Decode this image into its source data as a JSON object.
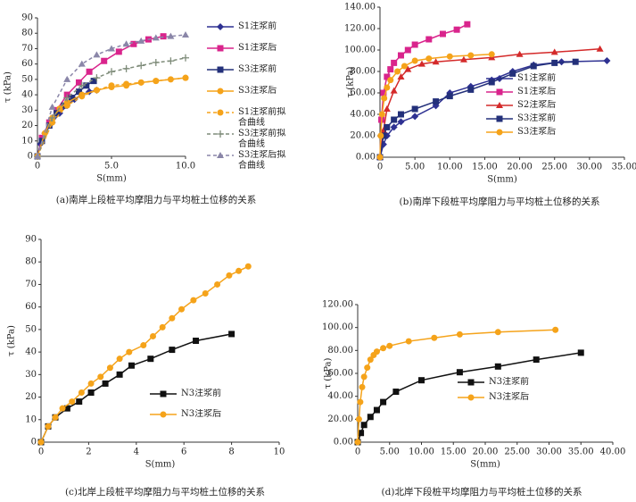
{
  "chart_data": [
    {
      "type": "line",
      "caption": "(a)南岸上段桩平均摩阻力与平均桩土位移的关系",
      "xlabel": "S(mm)",
      "ylabel": "τ (kPa)",
      "xlim": [
        0,
        10
      ],
      "xticks": [
        0,
        {
          "value": 5,
          "label": "5.0"
        },
        {
          "value": 10,
          "label": "10.0"
        }
      ],
      "ylim": [
        0,
        90
      ],
      "yticks": [
        0,
        10,
        20,
        30,
        40,
        50,
        60,
        70,
        80,
        90
      ],
      "series": [
        {
          "name": "S1注浆前",
          "color": "#2e3192",
          "marker": "diamond",
          "x": [
            0,
            0.2,
            0.5,
            1,
            1.5,
            2,
            2.5,
            3,
            3.5,
            4
          ],
          "values": [
            0,
            8,
            15,
            22,
            28,
            33,
            37,
            40,
            42,
            43
          ]
        },
        {
          "name": "S1注浆后",
          "color": "#d9248c",
          "marker": "square",
          "x": [
            0,
            0.3,
            0.8,
            1.3,
            2,
            2.8,
            3.5,
            4.5,
            5.5,
            6.5,
            7.5,
            8.5
          ],
          "values": [
            0,
            12,
            22,
            30,
            40,
            48,
            55,
            62,
            68,
            73,
            76,
            78
          ]
        },
        {
          "name": "S3注浆前",
          "color": "#23307a",
          "marker": "square",
          "x": [
            0,
            0.3,
            0.8,
            1.3,
            1.8,
            2.3,
            2.8,
            3.3,
            3.8
          ],
          "values": [
            0,
            10,
            20,
            28,
            33,
            38,
            42,
            46,
            49
          ]
        },
        {
          "name": "S3注浆后",
          "color": "#f5a31a",
          "marker": "circle",
          "x": [
            0,
            0.5,
            1,
            1.5,
            2,
            3,
            4,
            5,
            6,
            7,
            8,
            10
          ],
          "values": [
            0,
            15,
            25,
            31,
            35,
            40,
            43,
            45,
            46,
            48,
            49,
            51
          ]
        },
        {
          "name": "S1注浆前拟合曲线",
          "color": "#f5a31a",
          "marker": "circle",
          "dash": true,
          "x": [
            0,
            1,
            2,
            3,
            4,
            5,
            6,
            7,
            8,
            9,
            10
          ],
          "values": [
            0,
            22,
            33,
            39,
            43,
            46,
            47,
            48,
            49,
            50,
            51
          ]
        },
        {
          "name": "S3注浆前拟合曲线",
          "color": "#7f8c7a",
          "marker": "plus",
          "dash": true,
          "x": [
            0,
            1,
            2,
            3,
            4,
            5,
            6,
            7,
            8,
            9,
            10
          ],
          "values": [
            0,
            25,
            38,
            46,
            51,
            55,
            57,
            59,
            61,
            62,
            64
          ]
        },
        {
          "name": "S3注浆后拟合曲线",
          "color": "#8a86a8",
          "marker": "triangle",
          "dash": true,
          "x": [
            0,
            1,
            2,
            3,
            4,
            5,
            6,
            7,
            8,
            9,
            10
          ],
          "values": [
            0,
            32,
            50,
            60,
            66,
            70,
            73,
            75,
            77,
            78,
            79
          ]
        }
      ]
    },
    {
      "type": "line",
      "caption": "(b)南岸下段桩平均摩阻力与平均桩土位移的关系",
      "xlabel": "S(mm)",
      "ylabel": "τ (kPa)",
      "xlim": [
        0,
        35
      ],
      "xticks": [
        0,
        {
          "value": 5,
          "label": "5.00"
        },
        {
          "value": 10,
          "label": "10.00"
        },
        {
          "value": 15,
          "label": "15.00"
        },
        {
          "value": 20,
          "label": "20.00"
        },
        {
          "value": 25,
          "label": "25.00"
        },
        {
          "value": 30,
          "label": "30.00"
        },
        {
          "value": 35,
          "label": "35.00"
        }
      ],
      "ylim": [
        0,
        140
      ],
      "yticks": [
        {
          "value": 0,
          "label": "0.00"
        },
        {
          "value": 20,
          "label": "20.00"
        },
        {
          "value": 40,
          "label": "40.00"
        },
        {
          "value": 60,
          "label": "60.00"
        },
        {
          "value": 80,
          "label": "80.00"
        },
        {
          "value": 100,
          "label": "100.00"
        },
        {
          "value": 120,
          "label": "120.00"
        },
        {
          "value": 140,
          "label": "140.00"
        }
      ],
      "series": [
        {
          "name": "S1注浆前",
          "color": "#2e3192",
          "marker": "diamond",
          "x": [
            0,
            0.5,
            1,
            2,
            3,
            5,
            8,
            10,
            13,
            16,
            19,
            22,
            26,
            32.5
          ],
          "values": [
            0,
            12,
            20,
            28,
            33,
            38,
            48,
            60,
            66,
            72,
            80,
            86,
            89,
            90
          ]
        },
        {
          "name": "S1注浆后",
          "color": "#d9248c",
          "marker": "square",
          "x": [
            0,
            0.2,
            0.5,
            1,
            1.5,
            2,
            3,
            4,
            5,
            7,
            9,
            11,
            12.5
          ],
          "values": [
            0,
            35,
            60,
            75,
            82,
            88,
            95,
            100,
            105,
            110,
            115,
            119,
            124
          ]
        },
        {
          "name": "S2注浆后",
          "color": "#d42a2a",
          "marker": "triangle",
          "x": [
            0,
            0.5,
            1,
            2,
            3,
            4,
            6,
            8,
            12,
            16,
            20,
            25,
            31.5
          ],
          "values": [
            0,
            25,
            45,
            62,
            75,
            82,
            87,
            89,
            91,
            93,
            96,
            98,
            101
          ]
        },
        {
          "name": "S3注浆前",
          "color": "#23307a",
          "marker": "square",
          "x": [
            0,
            0.5,
            1,
            2,
            3,
            5,
            8,
            10,
            13,
            16,
            19,
            22,
            25,
            28
          ],
          "values": [
            0,
            20,
            28,
            35,
            40,
            45,
            52,
            57,
            63,
            70,
            78,
            85,
            88,
            89
          ]
        },
        {
          "name": "S3注浆后",
          "color": "#f5a31a",
          "marker": "circle",
          "x": [
            0,
            0.1,
            0.3,
            0.6,
            1,
            1.5,
            2.5,
            3.5,
            5,
            7,
            10,
            13,
            16
          ],
          "values": [
            0,
            20,
            40,
            55,
            65,
            72,
            80,
            85,
            90,
            92,
            94,
            95,
            96
          ]
        }
      ]
    },
    {
      "type": "line",
      "caption": "(c)北岸上段桩平均摩阻力与平均桩土位移的关系",
      "xlabel": "S(mm)",
      "ylabel": "τ (kPa)",
      "xlim": [
        0,
        10
      ],
      "xticks": [
        0,
        2,
        4,
        6,
        8,
        10
      ],
      "ylim": [
        0,
        90
      ],
      "yticks": [
        0,
        10,
        20,
        30,
        40,
        50,
        60,
        70,
        80,
        90
      ],
      "series": [
        {
          "name": "N3注浆前",
          "color": "#111111",
          "marker": "square",
          "x": [
            0,
            0.3,
            0.6,
            1.1,
            1.6,
            2.1,
            2.7,
            3.3,
            3.8,
            4.6,
            5.5,
            6.5,
            8
          ],
          "values": [
            0,
            7,
            11,
            15,
            18,
            22,
            26,
            30,
            34,
            37,
            41,
            45,
            48
          ]
        },
        {
          "name": "N3注浆后",
          "color": "#f5a31a",
          "marker": "circle",
          "x": [
            0,
            0.3,
            0.6,
            0.9,
            1.3,
            1.7,
            2.1,
            2.5,
            2.9,
            3.3,
            3.7,
            4.3,
            4.7,
            5.1,
            5.5,
            5.9,
            6.4,
            6.9,
            7.4,
            7.9,
            8.3,
            8.7
          ],
          "values": [
            0,
            7,
            11,
            15,
            18,
            22,
            26,
            29,
            33,
            37,
            40,
            43,
            47,
            51,
            55,
            59,
            63,
            66,
            70,
            74,
            76,
            78
          ]
        }
      ]
    },
    {
      "type": "line",
      "caption": "(d)北岸下段桩平均摩阻力与平均桩土位移的关系",
      "xlabel": "S(mm)",
      "ylabel": "τ (kPa)",
      "xlim": [
        0,
        40
      ],
      "xticks": [
        0,
        {
          "value": 5,
          "label": "5.00"
        },
        {
          "value": 10,
          "label": "10.00"
        },
        {
          "value": 15,
          "label": "15.00"
        },
        {
          "value": 20,
          "label": "20.00"
        },
        {
          "value": 25,
          "label": "25.00"
        },
        {
          "value": 30,
          "label": "30.00"
        },
        {
          "value": 35,
          "label": "35.00"
        },
        {
          "value": 40,
          "label": "40.00"
        }
      ],
      "ylim": [
        0,
        120
      ],
      "yticks": [
        {
          "value": 0,
          "label": "0.00"
        },
        {
          "value": 20,
          "label": "20.00"
        },
        {
          "value": 40,
          "label": "40.00"
        },
        {
          "value": 60,
          "label": "60.00"
        },
        {
          "value": 80,
          "label": "80.00"
        },
        {
          "value": 100,
          "label": "100.00"
        },
        {
          "value": 120,
          "label": "120.00"
        }
      ],
      "series": [
        {
          "name": "N3注浆前",
          "color": "#111111",
          "marker": "square",
          "x": [
            0,
            0.5,
            1,
            2,
            3,
            4,
            6,
            10,
            16,
            22,
            28,
            35
          ],
          "values": [
            0,
            8,
            15,
            22,
            28,
            35,
            44,
            54,
            61,
            66,
            72,
            78
          ]
        },
        {
          "name": "N3注浆后",
          "color": "#f5a31a",
          "marker": "circle",
          "x": [
            0,
            0.2,
            0.4,
            0.7,
            1,
            1.5,
            2,
            2.5,
            3,
            4,
            5,
            8,
            12,
            16,
            22,
            31
          ],
          "values": [
            0,
            20,
            35,
            48,
            57,
            65,
            72,
            76,
            79,
            82,
            84,
            88,
            91,
            94,
            96,
            98
          ]
        }
      ]
    }
  ]
}
